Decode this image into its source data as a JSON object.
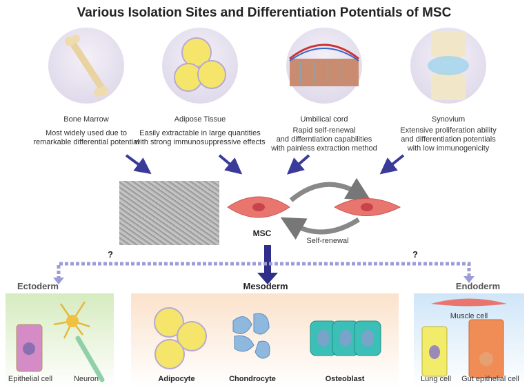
{
  "title": "Various Isolation Sites and Differentiation Potentials of MSC",
  "sources": [
    {
      "name": "Bone Marrow",
      "desc": [
        "Most widely used due to",
        "remarkable differential potential"
      ]
    },
    {
      "name": "Adipose Tissue",
      "desc": [
        "Easily extractable in large quantities",
        "with strong immunosuppressive effects"
      ]
    },
    {
      "name": "Umbilical cord",
      "desc": [
        "Rapid self-renewal",
        "and differntiation capabilities",
        "with painless extraction method"
      ]
    },
    {
      "name": "Synovium",
      "desc": [
        "Extensive proliferation ability",
        "and differentiation potentials",
        "with low immunogenicity"
      ]
    }
  ],
  "msc_label": "MSC",
  "self_renewal": "Self-renewal",
  "unknown_mark": "?",
  "layers": {
    "ectoderm": "Ectoderm",
    "mesoderm": "Mesoderm",
    "endoderm": "Endoderm"
  },
  "cells": {
    "epithelial": "Epithelial cell",
    "neuron": "Neuron",
    "adipocyte": "Adipocyte",
    "chondrocyte": "Chondrocyte",
    "osteoblast": "Osteoblast",
    "muscle": "Muscle cell",
    "lung": "Lung cell",
    "gut": "Gut epithelial cell"
  },
  "colors": {
    "arrow": "#3a3a9a",
    "dashed": "#9c9cd6",
    "msc_cell": "#e8766e"
  }
}
